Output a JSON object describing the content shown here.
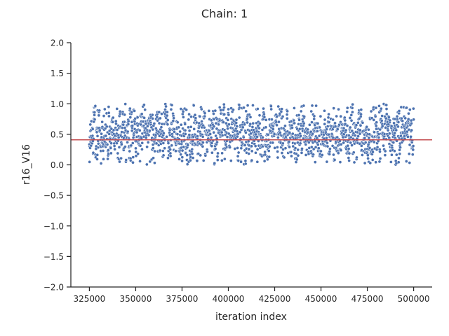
{
  "chart_data": {
    "type": "scatter",
    "title": "Chain: 1",
    "xlabel": "iteration index",
    "ylabel": "r16_V16",
    "xlim": [
      315000,
      510000
    ],
    "ylim": [
      -2.0,
      2.0
    ],
    "x_ticks": [
      325000,
      350000,
      375000,
      400000,
      425000,
      450000,
      475000,
      500000
    ],
    "x_tick_labels": [
      "325000",
      "350000",
      "375000",
      "400000",
      "425000",
      "450000",
      "475000",
      "500000"
    ],
    "y_ticks": [
      -2.0,
      -1.5,
      -1.0,
      -0.5,
      0.0,
      0.5,
      1.0,
      1.5,
      2.0
    ],
    "y_tick_labels": [
      "−2.0",
      "−1.5",
      "−1.0",
      "−0.5",
      "0.0",
      "0.5",
      "1.0",
      "1.5",
      "2.0"
    ],
    "grid": false,
    "reference_line": {
      "y": 0.41,
      "color": "#c44e52"
    },
    "series": [
      {
        "color": "#4c72b0",
        "x_start": 325000,
        "x_end": 500000,
        "num_points": 1750,
        "value_range": [
          0.0,
          1.0
        ],
        "mean": 0.41
      }
    ]
  }
}
